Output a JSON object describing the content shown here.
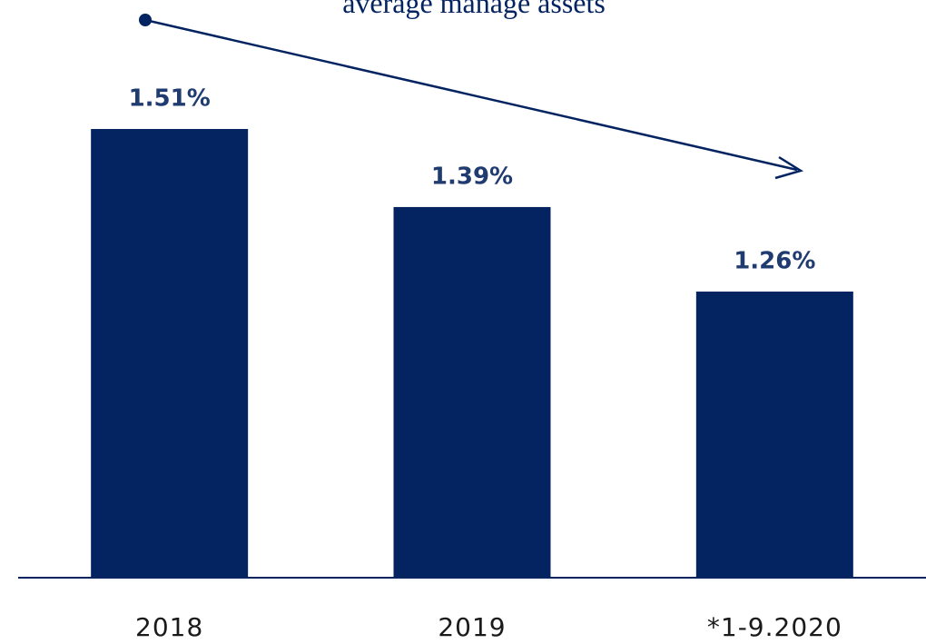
{
  "chart_data": {
    "type": "bar",
    "title": "average manage assets",
    "categories": [
      "2018",
      "2019",
      "*1-9.2020"
    ],
    "values": [
      1.51,
      1.39,
      1.26
    ],
    "value_labels": [
      "1.51%",
      "1.39%",
      "1.26%"
    ],
    "color": "#042361",
    "ylim": [
      0.82,
      1.7
    ]
  }
}
